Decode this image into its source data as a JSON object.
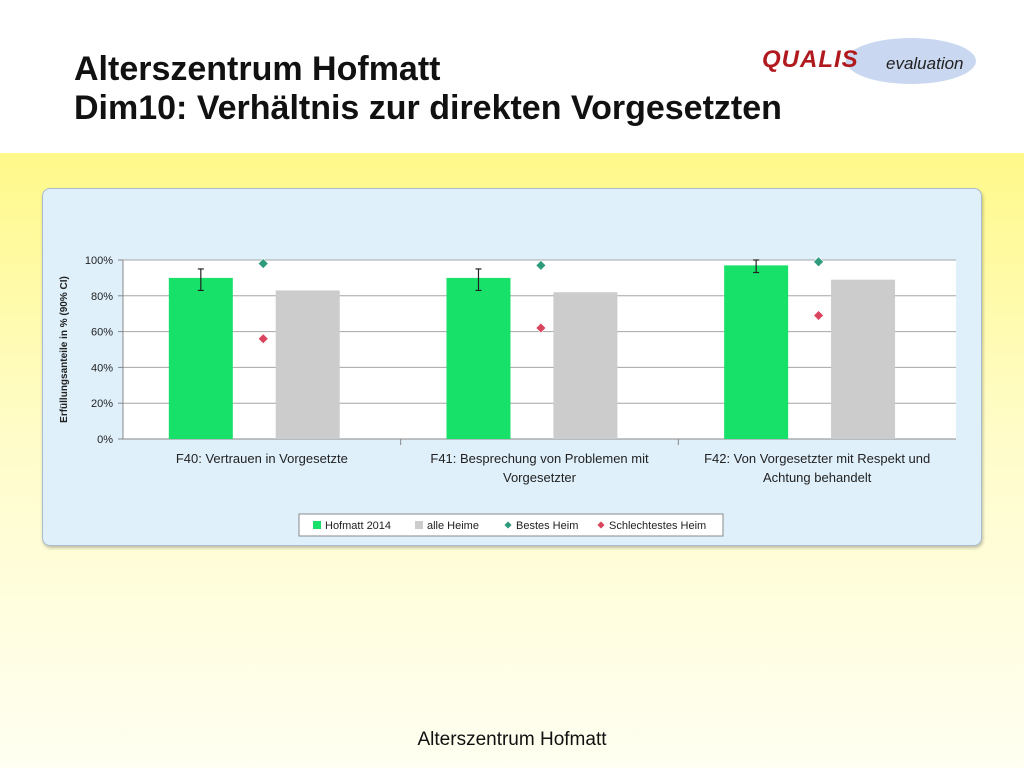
{
  "slide": {
    "title_line1": "Alterszentrum Hofmatt",
    "title_line2": "Dim10: Verhältnis zur direkten Vorgesetzten",
    "footer": "Alterszentrum Hofmatt"
  },
  "logo": {
    "brand": "QUALIS",
    "subtitle": "evaluation",
    "brand_color": "#b0191e",
    "ellipse_color": "#c9d8f0"
  },
  "colors": {
    "hofmatt": "#18e16a",
    "alle_heime": "#cccccc",
    "bestes": "#2e9b7c",
    "schlechtestes": "#d9455e",
    "band_top": "#fff98a"
  },
  "chart_data": {
    "type": "bar",
    "ylabel": "Erfüllungsanteile in % (90% CI)",
    "ylim": [
      0,
      100
    ],
    "yticks": [
      "0%",
      "20%",
      "40%",
      "60%",
      "80%",
      "100%"
    ],
    "categories": [
      "F40: Vertrauen in Vorgesetzte",
      "F41: Besprechung von Problemen mit Vorgesetzter",
      "F42: Von Vorgesetzter mit Respekt und Achtung behandelt"
    ],
    "category_lines": [
      [
        "F40: Vertrauen in Vorgesetzte"
      ],
      [
        "F41: Besprechung von Problemen mit",
        "Vorgesetzter"
      ],
      [
        "F42: Von Vorgesetzter mit Respekt und",
        "Achtung behandelt"
      ]
    ],
    "series": [
      {
        "name": "Hofmatt 2014",
        "kind": "bar",
        "values": [
          90,
          90,
          97
        ],
        "ci_low": [
          83,
          83,
          93
        ],
        "ci_high": [
          95,
          95,
          100
        ]
      },
      {
        "name": "alle Heime",
        "kind": "bar",
        "values": [
          83,
          82,
          89
        ]
      },
      {
        "name": "Bestes Heim",
        "kind": "marker",
        "values": [
          98,
          97,
          99
        ]
      },
      {
        "name": "Schlechtestes Heim",
        "kind": "marker",
        "values": [
          56,
          62,
          69
        ]
      }
    ],
    "legend_position": "bottom",
    "grid": true
  }
}
